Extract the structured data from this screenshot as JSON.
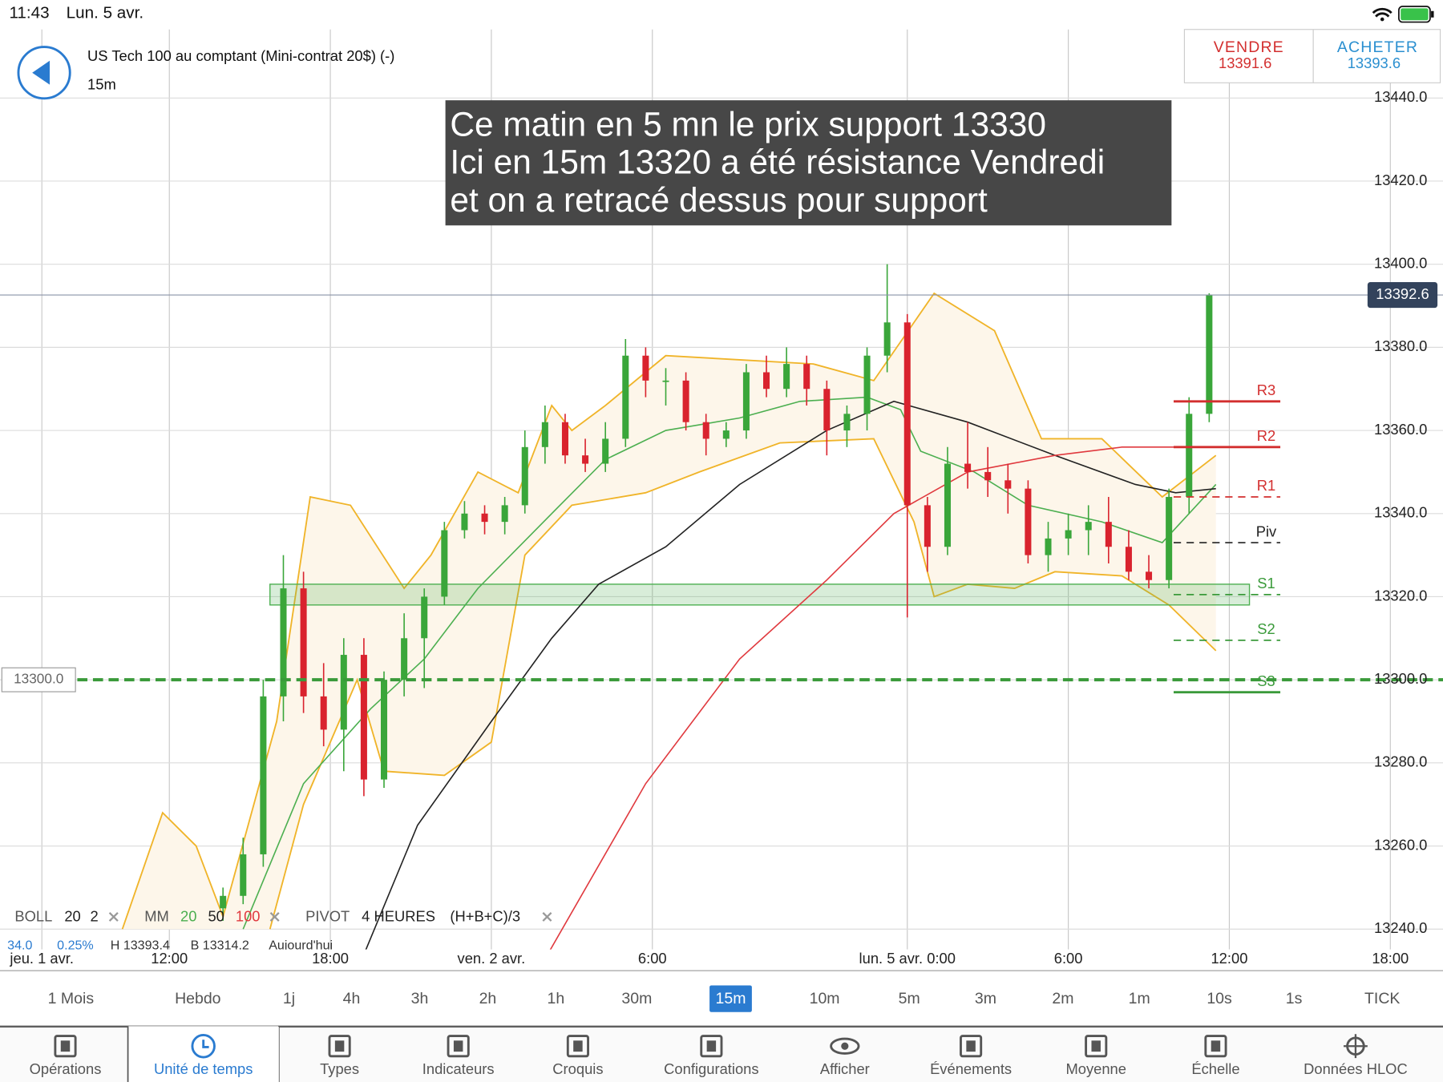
{
  "status_bar": {
    "time": "11:43",
    "date": "Lun. 5 avr."
  },
  "header": {
    "instrument": "US Tech 100 au comptant (Mini-contrat 20$) (-)",
    "timeframe": "15m",
    "sell_label": "VENDRE",
    "sell_price": "13391.6",
    "buy_label": "ACHETER",
    "buy_price": "13393.6"
  },
  "annotation": [
    "Ce matin en 5 mn le prix support 13330",
    "Ici en 15m 13320 a été résistance Vendredi",
    "et on a retracé dessus pour support"
  ],
  "chart_data": {
    "type": "candlestick",
    "xlim": [
      -25.24,
      189.85
    ],
    "ylim": [
      13230,
      13456.5
    ],
    "xticks": [
      {
        "value": -19,
        "label": "jeu. 1 avr."
      },
      {
        "value": 0,
        "label": "12:00"
      },
      {
        "value": 24,
        "label": "18:00"
      },
      {
        "value": 48,
        "label": "ven. 2 avr."
      },
      {
        "value": 72,
        "label": "6:00"
      },
      {
        "value": 110,
        "label": "lun. 5 avr. 0:00"
      },
      {
        "value": 134,
        "label": "6:00"
      },
      {
        "value": 158,
        "label": "12:00"
      },
      {
        "value": 182,
        "label": "18:00"
      }
    ],
    "yticks": [
      {
        "value": 13240,
        "label": "13240.0"
      },
      {
        "value": 13260,
        "label": "13260.0"
      },
      {
        "value": 13280,
        "label": "13280.0"
      },
      {
        "value": 13300,
        "label": "13300.0"
      },
      {
        "value": 13320,
        "label": "13320.0"
      },
      {
        "value": 13340,
        "label": "13340.0"
      },
      {
        "value": 13360,
        "label": "13360.0"
      },
      {
        "value": 13380,
        "label": "13380.0"
      },
      {
        "value": 13400,
        "label": "13400.0"
      },
      {
        "value": 13420,
        "label": "13420.0"
      },
      {
        "value": 13440,
        "label": "13440.0"
      }
    ],
    "grid": true,
    "candles": {
      "up_color": "#3aa63a",
      "down_color": "#d9232e",
      "x": [
        8,
        11,
        14,
        17,
        20,
        23,
        26,
        29,
        32,
        35,
        38,
        41,
        44,
        47,
        50,
        53,
        56,
        59,
        62,
        65,
        68,
        71,
        74,
        77,
        80,
        83,
        86,
        89,
        92,
        95,
        98,
        101,
        104,
        107,
        110,
        113,
        116,
        119,
        122,
        125,
        128,
        131,
        134,
        137,
        140,
        143,
        146,
        149,
        152,
        155
      ],
      "open": [
        13245,
        13248,
        13258,
        13296,
        13322,
        13296,
        13288,
        13306,
        13276,
        13300,
        13310,
        13320,
        13336,
        13340,
        13338,
        13342,
        13356,
        13362,
        13354,
        13352,
        13358,
        13378,
        13372,
        13372,
        13362,
        13358,
        13360,
        13374,
        13370,
        13376,
        13370,
        13360,
        13364,
        13378,
        13386,
        13342,
        13332,
        13352,
        13350,
        13348,
        13346,
        13330,
        13334,
        13336,
        13338,
        13332,
        13326,
        13324,
        13344,
        13364
      ],
      "high": [
        13250,
        13262,
        13300,
        13330,
        13326,
        13304,
        13310,
        13310,
        13302,
        13316,
        13322,
        13338,
        13343,
        13342,
        13344,
        13360,
        13366,
        13364,
        13358,
        13362,
        13382,
        13380,
        13375,
        13374,
        13364,
        13362,
        13376,
        13378,
        13380,
        13378,
        13372,
        13366,
        13380,
        13400,
        13388,
        13344,
        13356,
        13362,
        13356,
        13352,
        13348,
        13338,
        13340,
        13342,
        13344,
        13336,
        13330,
        13346,
        13368,
        13393
      ],
      "low": [
        13242,
        13246,
        13255,
        13290,
        13292,
        13284,
        13278,
        13272,
        13274,
        13296,
        13298,
        13318,
        13334,
        13335,
        13335,
        13340,
        13352,
        13352,
        13350,
        13350,
        13356,
        13368,
        13366,
        13360,
        13354,
        13356,
        13358,
        13368,
        13368,
        13366,
        13354,
        13356,
        13360,
        13374,
        13315,
        13326,
        13330,
        13346,
        13344,
        13340,
        13328,
        13326,
        13330,
        13330,
        13328,
        13324,
        13322,
        13322,
        13340,
        13362
      ],
      "close": [
        13248,
        13258,
        13296,
        13322,
        13296,
        13288,
        13306,
        13276,
        13300,
        13310,
        13320,
        13336,
        13340,
        13338,
        13342,
        13356,
        13362,
        13354,
        13352,
        13358,
        13378,
        13372,
        13372,
        13362,
        13358,
        13360,
        13374,
        13370,
        13376,
        13370,
        13360,
        13364,
        13378,
        13386,
        13342,
        13332,
        13352,
        13350,
        13348,
        13346,
        13330,
        13334,
        13336,
        13338,
        13332,
        13326,
        13324,
        13344,
        13364,
        13392.6
      ]
    },
    "bollinger": {
      "color": "#f0b429",
      "fill": "#fdf6ea",
      "upper": {
        "x": [
          -7,
          -1,
          4,
          8,
          16,
          21,
          27,
          35,
          39,
          46,
          52,
          57,
          60,
          65,
          74,
          85,
          96,
          105,
          114,
          123,
          130,
          139,
          148,
          156
        ],
        "values": [
          13240,
          13268,
          13260,
          13243,
          13290,
          13344,
          13342,
          13322,
          13330,
          13350,
          13345,
          13366,
          13360,
          13366,
          13378,
          13377,
          13376,
          13372,
          13393,
          13384,
          13358,
          13358,
          13344,
          13354
        ]
      },
      "lower": {
        "x": [
          15,
          20,
          28,
          32,
          41,
          48,
          53,
          60,
          71,
          79,
          91,
          105,
          111,
          114,
          119,
          126,
          132,
          142,
          149,
          156
        ],
        "values": [
          13240,
          13270,
          13300,
          13278,
          13277,
          13285,
          13330,
          13342,
          13345,
          13350,
          13357,
          13358,
          13338,
          13320,
          13323,
          13322,
          13326,
          13325,
          13318,
          13307
        ]
      }
    },
    "lines": [
      {
        "color": "#4caf50",
        "x": [
          11,
          20,
          30,
          38,
          46,
          57,
          65,
          74,
          85,
          94,
          104,
          109,
          112,
          120,
          128,
          139,
          148,
          156
        ],
        "values": [
          13240,
          13275,
          13293,
          13305,
          13322,
          13340,
          13353,
          13360,
          13363,
          13367,
          13368,
          13365,
          13355,
          13350,
          13342,
          13338,
          13333,
          13347
        ]
      },
      {
        "color": "#222222",
        "x": [
          28,
          37,
          48,
          57,
          64,
          74,
          85,
          98,
          108,
          119,
          132,
          144,
          150,
          156
        ],
        "values": [
          13230,
          13265,
          13290,
          13310,
          13323,
          13332,
          13347,
          13360,
          13367,
          13362,
          13354,
          13347,
          13345,
          13346
        ]
      },
      {
        "color": "#e0393e",
        "x": [
          55,
          71,
          85,
          98,
          108,
          119,
          132,
          142,
          156
        ],
        "values": [
          13230,
          13275,
          13305,
          13324,
          13340,
          13350,
          13354,
          13356,
          13356
        ]
      }
    ],
    "zone": {
      "x": [
        15,
        161
      ],
      "y": [
        13318,
        13323
      ],
      "color": "#4caf50"
    },
    "alert": {
      "value": 13300,
      "label": "13300.0",
      "color": "#3a9a3a"
    },
    "last_price": 13392.6,
    "levels": [
      {
        "label": "R3",
        "value": 13367,
        "color": "#d32f2f",
        "dashed": false
      },
      {
        "label": "R2",
        "value": 13356,
        "color": "#d32f2f",
        "dashed": false
      },
      {
        "label": "R1",
        "value": 13344,
        "color": "#d32f2f",
        "dashed": true
      },
      {
        "label": "Piv",
        "value": 13333,
        "color": "#222222",
        "dashed": true
      },
      {
        "label": "S1",
        "value": 13320.5,
        "color": "#3a9a3a",
        "dashed": true
      },
      {
        "label": "S2",
        "value": 13309.5,
        "color": "#3a9a3a",
        "dashed": true
      },
      {
        "label": "S3",
        "value": 13297,
        "color": "#3a9a3a",
        "dashed": false
      }
    ]
  },
  "indicator_legend": {
    "boll": [
      "BOLL",
      "20",
      "2"
    ],
    "mm": [
      "MM",
      "20",
      "50",
      "100"
    ],
    "pivot": [
      "PIVOT",
      "4 HEURES",
      "(H+B+C)/3"
    ],
    "summary": [
      "34.0",
      "0.25%",
      "H 13393.4",
      "B 13314.2",
      "Aujourd'hui"
    ]
  },
  "timeframes": {
    "items": [
      "1 Mois",
      "Hebdo",
      "1j",
      "4h",
      "3h",
      "2h",
      "1h",
      "30m",
      "15m",
      "10m",
      "5m",
      "3m",
      "2m",
      "1m",
      "10s",
      "1s",
      "TICK"
    ],
    "selected": 8
  },
  "toolbar": {
    "items": [
      "Opérations",
      "Unité de temps",
      "Types",
      "Indicateurs",
      "Croquis",
      "Configurations",
      "Afficher",
      "Événements",
      "Moyenne",
      "Échelle",
      "Données HLOC"
    ],
    "selected": 1
  }
}
